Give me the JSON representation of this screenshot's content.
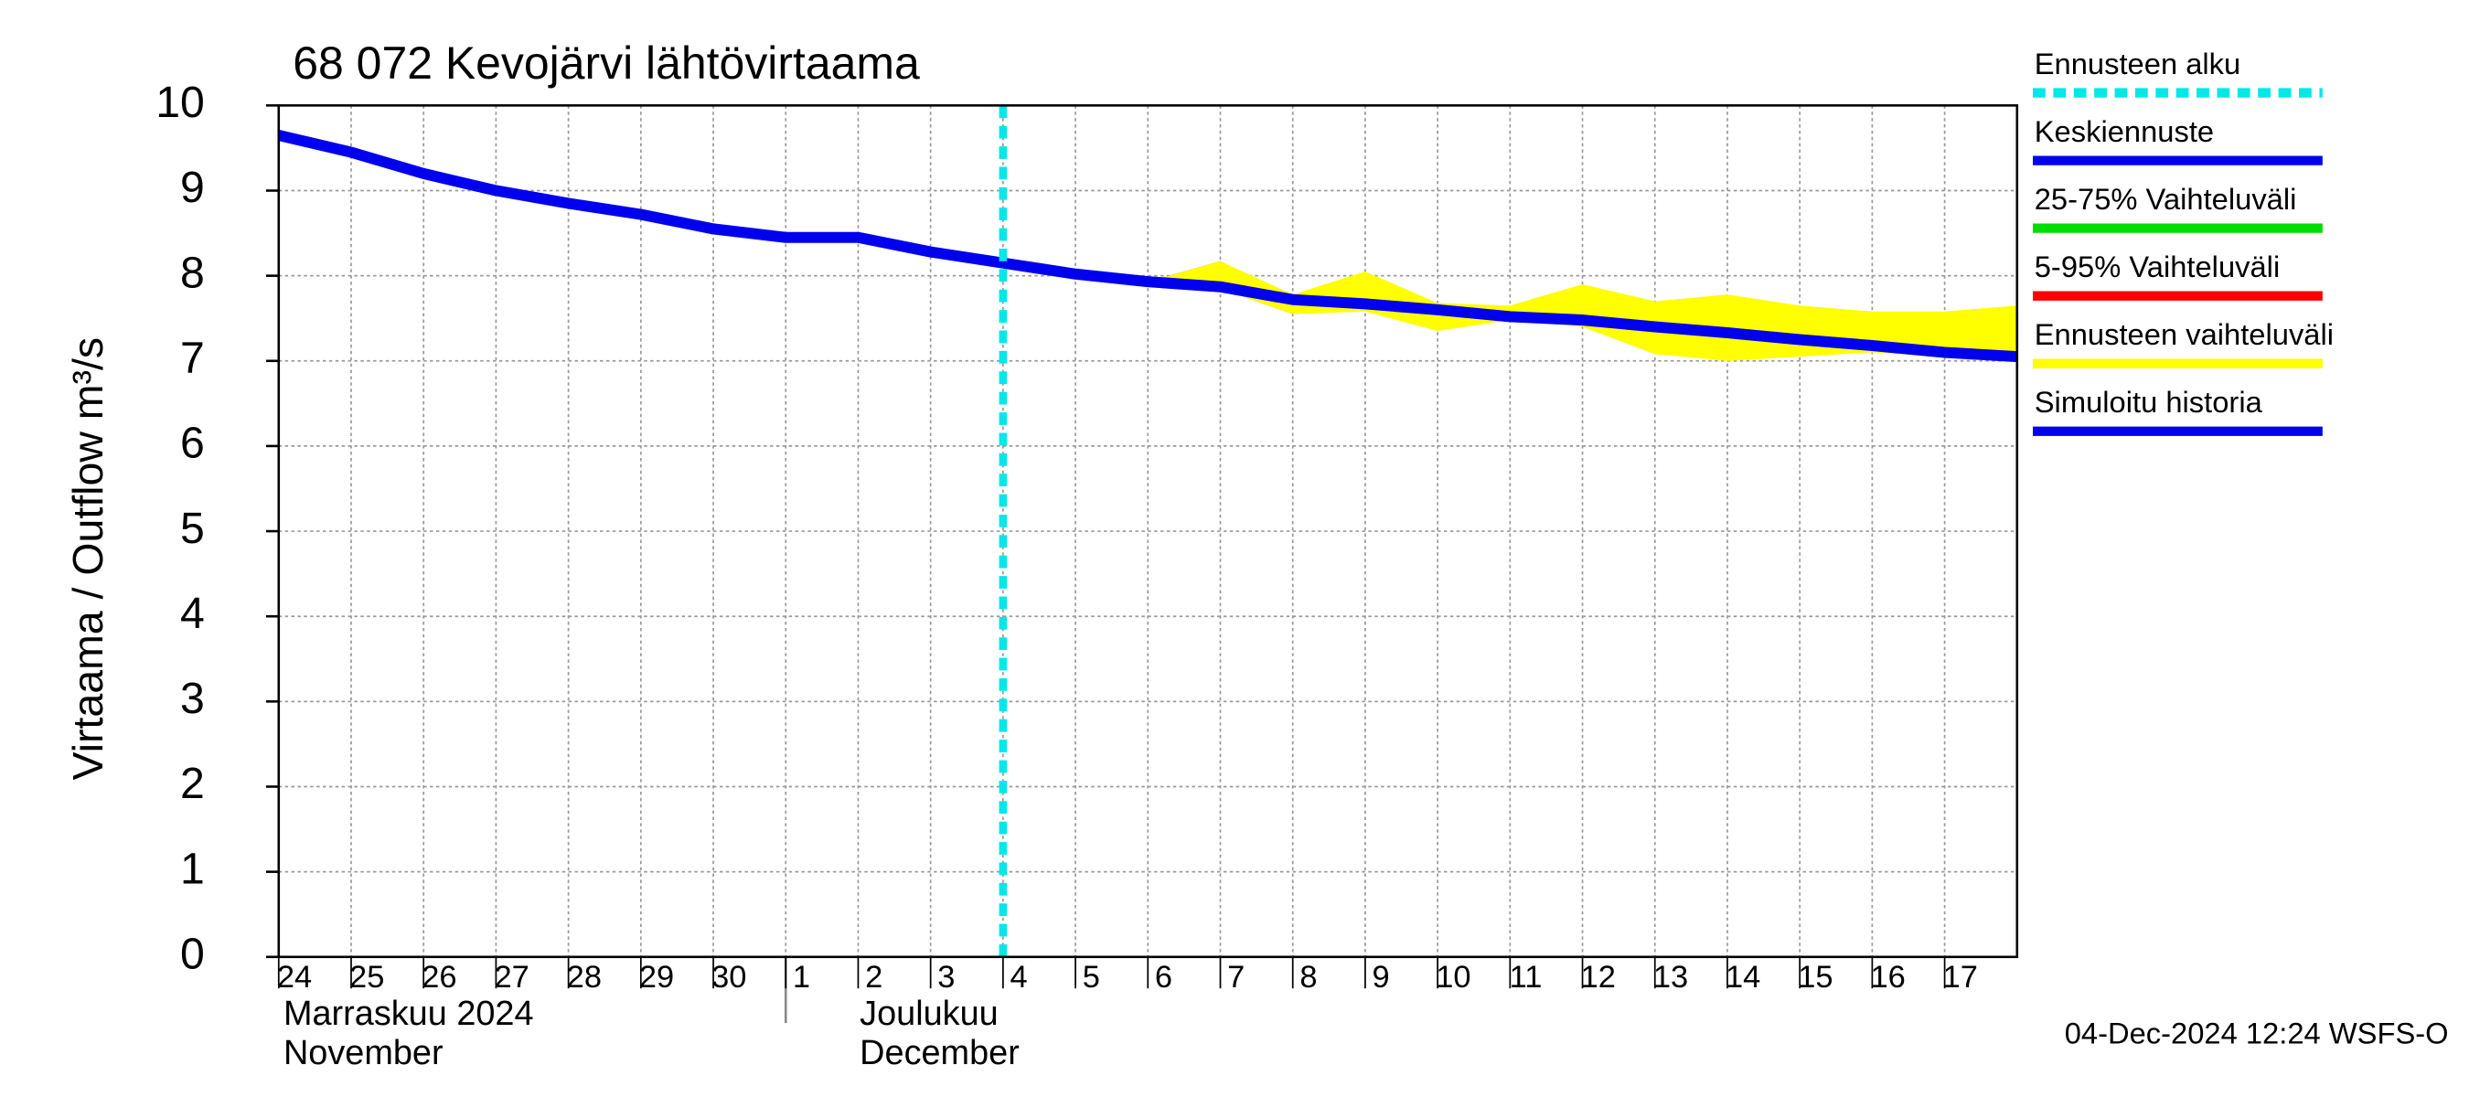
{
  "chart_data": {
    "type": "line",
    "title": "68 072 Kevojärvi lähtövirtaama",
    "y_label": "Virtaama / Outflow    m³/s",
    "footer": "04-Dec-2024 12:24 WSFS-O",
    "months": [
      {
        "label": "Marraskuu 2024",
        "sublabel": "November"
      },
      {
        "label": "Joulukuu",
        "sublabel": "December"
      }
    ],
    "x": [
      "2024-11-24",
      "2024-11-25",
      "2024-11-26",
      "2024-11-27",
      "2024-11-28",
      "2024-11-29",
      "2024-11-30",
      "2024-12-01",
      "2024-12-02",
      "2024-12-03",
      "2024-12-04",
      "2024-12-05",
      "2024-12-06",
      "2024-12-07",
      "2024-12-08",
      "2024-12-09",
      "2024-12-10",
      "2024-12-11",
      "2024-12-12",
      "2024-12-13",
      "2024-12-14",
      "2024-12-15",
      "2024-12-16",
      "2024-12-17",
      "2024-12-18"
    ],
    "xlim": [
      "2024-11-24",
      "2024-12-18"
    ],
    "xticks": [
      {
        "value": "2024-11-24",
        "label": "24"
      },
      {
        "value": "2024-11-25",
        "label": "25"
      },
      {
        "value": "2024-11-26",
        "label": "26"
      },
      {
        "value": "2024-11-27",
        "label": "27"
      },
      {
        "value": "2024-11-28",
        "label": "28"
      },
      {
        "value": "2024-11-29",
        "label": "29"
      },
      {
        "value": "2024-11-30",
        "label": "30"
      },
      {
        "value": "2024-12-01",
        "label": "1"
      },
      {
        "value": "2024-12-02",
        "label": "2"
      },
      {
        "value": "2024-12-03",
        "label": "3"
      },
      {
        "value": "2024-12-04",
        "label": "4"
      },
      {
        "value": "2024-12-05",
        "label": "5"
      },
      {
        "value": "2024-12-06",
        "label": "6"
      },
      {
        "value": "2024-12-07",
        "label": "7"
      },
      {
        "value": "2024-12-08",
        "label": "8"
      },
      {
        "value": "2024-12-09",
        "label": "9"
      },
      {
        "value": "2024-12-10",
        "label": "10"
      },
      {
        "value": "2024-12-11",
        "label": "11"
      },
      {
        "value": "2024-12-12",
        "label": "12"
      },
      {
        "value": "2024-12-13",
        "label": "13"
      },
      {
        "value": "2024-12-14",
        "label": "14"
      },
      {
        "value": "2024-12-15",
        "label": "15"
      },
      {
        "value": "2024-12-16",
        "label": "16"
      },
      {
        "value": "2024-12-17",
        "label": "17"
      }
    ],
    "ylim": [
      0,
      10
    ],
    "yticks": [
      0,
      1,
      2,
      3,
      4,
      5,
      6,
      7,
      8,
      9,
      10
    ],
    "grid": true,
    "series": [
      {
        "name": "Ennusteen alku",
        "color": "#00e8e8",
        "kind": "vline",
        "at": "2024-12-04"
      },
      {
        "name": "Keskiennuste",
        "color": "#0000ee",
        "kind": "line",
        "values": [
          null,
          null,
          null,
          null,
          null,
          null,
          null,
          null,
          null,
          null,
          8.15,
          8.02,
          7.93,
          7.87,
          7.72,
          7.67,
          7.6,
          7.52,
          7.48,
          7.4,
          7.33,
          7.25,
          7.18,
          7.1,
          7.05
        ]
      },
      {
        "name": "25-75% Vaihteluväli",
        "color": "#00dd00",
        "kind": "band"
      },
      {
        "name": "5-95% Vaihteluväli",
        "color": "#ff0000",
        "kind": "band",
        "lower": [
          null,
          null,
          null,
          null,
          null,
          null,
          null,
          null,
          null,
          null,
          null,
          null,
          7.93,
          7.85,
          7.55,
          7.6,
          7.6,
          7.5,
          7.42,
          7.2,
          7.02,
          7.12,
          7.12,
          7.08,
          7.05
        ],
        "upper": [
          null,
          null,
          null,
          null,
          null,
          null,
          null,
          null,
          null,
          null,
          null,
          null,
          7.93,
          8.17,
          7.75,
          7.72,
          7.62,
          7.55,
          7.5,
          7.48,
          7.42,
          7.35,
          7.25,
          7.2,
          7.28
        ]
      },
      {
        "name": "Ennusteen vaihteluväli",
        "color": "#ffff00",
        "kind": "band",
        "lower": [
          null,
          null,
          null,
          null,
          null,
          null,
          null,
          null,
          null,
          null,
          null,
          null,
          7.93,
          7.85,
          7.55,
          7.58,
          7.35,
          7.48,
          7.4,
          7.08,
          7.0,
          7.05,
          7.1,
          7.05,
          7.05
        ],
        "upper": [
          null,
          null,
          null,
          null,
          null,
          null,
          null,
          null,
          null,
          null,
          null,
          null,
          7.93,
          8.17,
          7.78,
          8.05,
          7.68,
          7.65,
          7.9,
          7.7,
          7.78,
          7.65,
          7.58,
          7.58,
          7.65
        ]
      },
      {
        "name": "Simuloitu historia",
        "color": "#0000ee",
        "kind": "line",
        "values": [
          9.65,
          9.45,
          9.2,
          9.0,
          8.85,
          8.72,
          8.55,
          8.45,
          8.45,
          8.28,
          8.15,
          null,
          null,
          null,
          null,
          null,
          null,
          null,
          null,
          null,
          null,
          null,
          null,
          null,
          null
        ]
      }
    ]
  }
}
